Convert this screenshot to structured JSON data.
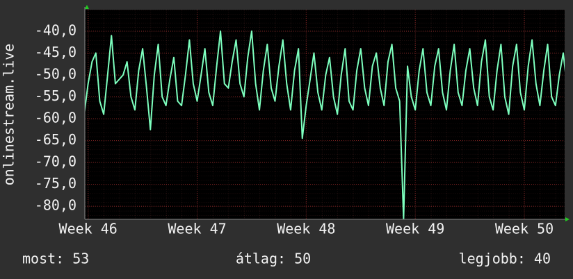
{
  "chart_data": {
    "type": "line",
    "ylabel": "onlinestream.live",
    "color": "#7dffbe",
    "grid": true,
    "xlim": [
      45.97,
      50.37
    ],
    "ylim": [
      -83,
      -35.1
    ],
    "xticks": [
      {
        "value": 46,
        "label": "Week 46"
      },
      {
        "value": 47,
        "label": "Week 47"
      },
      {
        "value": 48,
        "label": "Week 48"
      },
      {
        "value": 49,
        "label": "Week 49"
      },
      {
        "value": 50,
        "label": "Week 50"
      }
    ],
    "yticks": [
      {
        "value": -40,
        "label": "-40,0"
      },
      {
        "value": -45,
        "label": "-45,0"
      },
      {
        "value": -50,
        "label": "-50,0"
      },
      {
        "value": -55,
        "label": "-55,0"
      },
      {
        "value": -60,
        "label": "-60,0"
      },
      {
        "value": -65,
        "label": "-65,0"
      },
      {
        "value": -70,
        "label": "-70,0"
      },
      {
        "value": -75,
        "label": "-75,0"
      },
      {
        "value": -80,
        "label": "-80,0"
      }
    ],
    "x": [
      45.964,
      46.0,
      46.036,
      46.071,
      46.107,
      46.143,
      46.179,
      46.214,
      46.25,
      46.286,
      46.321,
      46.357,
      46.393,
      46.429,
      46.464,
      46.5,
      46.536,
      46.571,
      46.607,
      46.643,
      46.679,
      46.714,
      46.75,
      46.786,
      46.821,
      46.857,
      46.893,
      46.929,
      46.964,
      47.0,
      47.036,
      47.071,
      47.107,
      47.143,
      47.179,
      47.214,
      47.25,
      47.286,
      47.321,
      47.357,
      47.393,
      47.429,
      47.464,
      47.5,
      47.536,
      47.571,
      47.607,
      47.643,
      47.679,
      47.714,
      47.75,
      47.786,
      47.821,
      47.857,
      47.893,
      47.929,
      47.964,
      48.0,
      48.036,
      48.071,
      48.107,
      48.143,
      48.179,
      48.214,
      48.25,
      48.286,
      48.321,
      48.357,
      48.393,
      48.429,
      48.464,
      48.5,
      48.536,
      48.571,
      48.607,
      48.643,
      48.679,
      48.714,
      48.75,
      48.786,
      48.821,
      48.857,
      48.893,
      48.929,
      48.964,
      49.0,
      49.036,
      49.071,
      49.107,
      49.143,
      49.179,
      49.214,
      49.25,
      49.286,
      49.321,
      49.357,
      49.393,
      49.429,
      49.464,
      49.5,
      49.536,
      49.571,
      49.607,
      49.643,
      49.679,
      49.714,
      49.75,
      49.786,
      49.821,
      49.857,
      49.893,
      49.929,
      49.964,
      50.0,
      50.036,
      50.071,
      50.107,
      50.143,
      50.179,
      50.214,
      50.25,
      50.286,
      50.321,
      50.357,
      50.393
    ],
    "values": [
      -59,
      -52,
      -47,
      -45,
      -56,
      -59,
      -50,
      -41,
      -52,
      -51,
      -50,
      -47,
      -55,
      -58,
      -49,
      -44,
      -53,
      -62.5,
      -50,
      -43,
      -55,
      -57,
      -51,
      -46,
      -56,
      -57,
      -50,
      -42,
      -52,
      -56,
      -50,
      -44,
      -54,
      -57,
      -48,
      -40,
      -52,
      -53,
      -47,
      -42,
      -52,
      -55,
      -46,
      -40,
      -52,
      -58,
      -49,
      -43,
      -53,
      -56,
      -48,
      -42,
      -52,
      -58,
      -49,
      -44,
      -64.5,
      -57,
      -51,
      -45,
      -54,
      -58,
      -50,
      -46,
      -55,
      -59,
      -50,
      -44,
      -56,
      -58,
      -49,
      -44,
      -53,
      -57,
      -48,
      -45,
      -53,
      -57,
      -47,
      -43,
      -53,
      -56,
      -83,
      -48,
      -55,
      -58,
      -49,
      -44,
      -54,
      -57,
      -48,
      -44,
      -54,
      -58,
      -49,
      -43,
      -54,
      -57,
      -49,
      -44,
      -53,
      -57,
      -47,
      -42,
      -55,
      -58,
      -49,
      -43,
      -55,
      -59,
      -48,
      -43,
      -54,
      -58,
      -48,
      -42,
      -52,
      -57,
      -49,
      -43,
      -55,
      -57,
      -50,
      -45,
      -53
    ],
    "footer": [
      "most: 53",
      "átlag: 50",
      "legjobb: 40"
    ]
  }
}
